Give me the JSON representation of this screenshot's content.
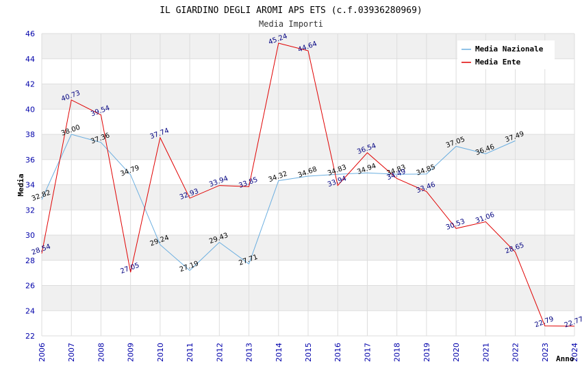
{
  "chart_data": {
    "type": "line",
    "title": "IL GIARDINO DEGLI AROMI APS ETS (c.f.03936280969)",
    "subtitle": "Media Importi",
    "xlabel": "Anno",
    "ylabel": "Media",
    "ylim": [
      22,
      46
    ],
    "ytick_step": 2,
    "grid": true,
    "legend_position": "top-right",
    "x": [
      "2006",
      "2007",
      "2008",
      "2009",
      "2010",
      "2011",
      "2012",
      "2013",
      "2014",
      "2015",
      "2016",
      "2017",
      "2018",
      "2019",
      "2020",
      "2021",
      "2022",
      "2023",
      "2024"
    ],
    "series": [
      {
        "name": "Media Nazionale",
        "color": "#6aaee0",
        "label_color": "#000000",
        "values": [
          32.82,
          38.0,
          37.36,
          34.79,
          29.24,
          27.19,
          29.43,
          27.71,
          34.32,
          34.68,
          34.83,
          34.94,
          34.83,
          34.85,
          37.05,
          36.46,
          37.49,
          null,
          null
        ]
      },
      {
        "name": "Media Ente",
        "color": "#e00000",
        "label_color": "#000080",
        "values": [
          28.54,
          40.73,
          39.54,
          27.05,
          37.74,
          32.93,
          33.94,
          33.85,
          45.24,
          44.64,
          33.94,
          36.54,
          34.49,
          33.46,
          30.53,
          31.06,
          28.65,
          22.79,
          22.77
        ]
      }
    ]
  }
}
